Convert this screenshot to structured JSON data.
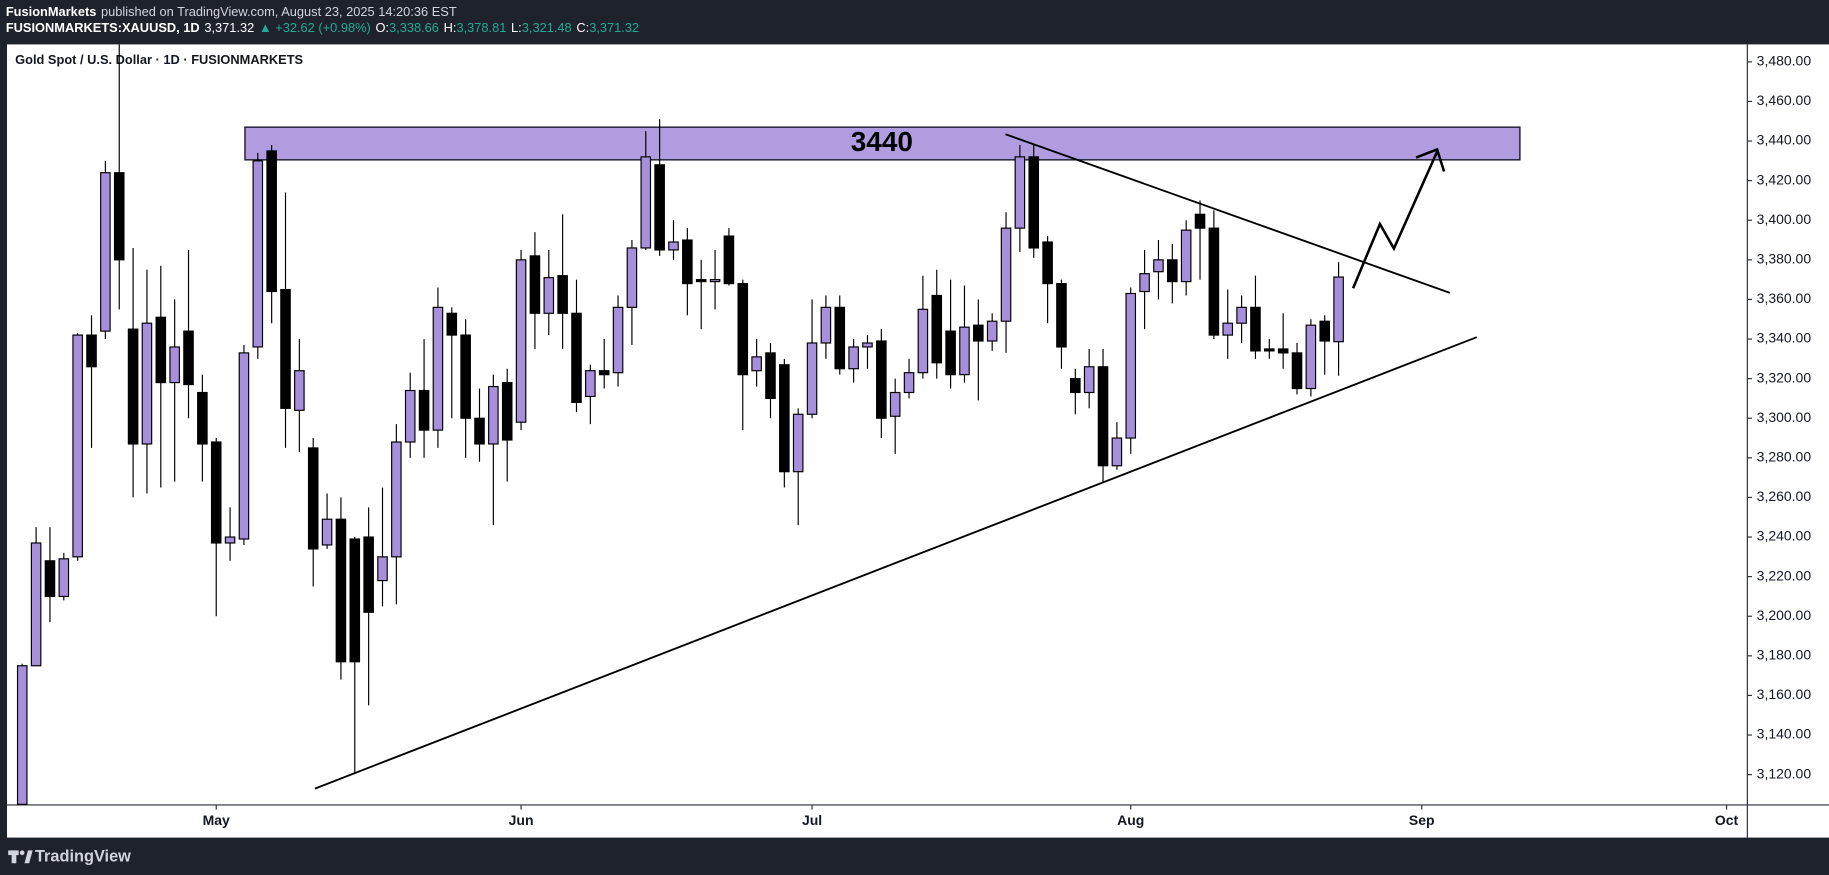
{
  "header": {
    "publisher": "FusionMarkets",
    "published": "published on TradingView.com, August 23, 2025 14:20:36 EST",
    "symbol": "FUSIONMARKETS:XAUUSD, 1D",
    "last": "3,371.32",
    "change": "▲ +32.62 (+0.98%)",
    "ohlc": [
      {
        "label": "O:",
        "value": "3,338.66"
      },
      {
        "label": "H:",
        "value": "3,378.81"
      },
      {
        "label": "L:",
        "value": "3,321.48"
      },
      {
        "label": "C:",
        "value": "3,371.32"
      }
    ],
    "accent_color": "#22ab94"
  },
  "chart_data": {
    "type": "candlestick",
    "title": "Gold Spot / U.S. Dollar · 1D · FUSIONMARKETS",
    "up_color": "#a690dc",
    "down_color": "#000000",
    "series": [
      {
        "open": [
          3105,
          3175,
          3228,
          3210,
          3230,
          3342,
          3344,
          3424,
          3345,
          3287,
          3351,
          3318,
          3344,
          3313,
          3288,
          3237,
          3239,
          3336,
          3435,
          3365,
          3304,
          3285,
          3236,
          3249,
          3239,
          3240,
          3218,
          3230,
          3288,
          3314,
          3294,
          3353,
          3342,
          3300,
          3287,
          3318,
          3298,
          3382,
          3353,
          3372,
          3353,
          3311,
          3324,
          3323,
          3356,
          3386,
          3428,
          3385,
          3390,
          3370,
          3369,
          3392,
          3368,
          3324,
          3333,
          3327,
          3273,
          3302,
          3338,
          3356,
          3325,
          3336,
          3339,
          3301,
          3313,
          3323,
          3362,
          3344,
          3322,
          3347,
          3339,
          3349,
          3396,
          3432,
          3389,
          3368,
          3320,
          3313,
          3326,
          3276,
          3290,
          3364,
          3374,
          3380,
          3369,
          3403,
          3396,
          3342,
          3348,
          3356,
          3335,
          3335,
          3333,
          3315,
          3349,
          3338.66
        ],
        "high": [
          3176,
          3245,
          3245,
          3232,
          3343,
          3352,
          3430,
          3490,
          3386,
          3375,
          3377,
          3360,
          3385,
          3322,
          3290,
          3255,
          3337,
          3434,
          3438,
          3414,
          3340,
          3290,
          3262,
          3260,
          3240,
          3255,
          3265,
          3297,
          3323,
          3340,
          3366,
          3356,
          3350,
          3315,
          3322,
          3325,
          3385,
          3394,
          3385,
          3403,
          3370,
          3327,
          3340,
          3362,
          3390,
          3445,
          3451,
          3400,
          3396,
          3380,
          3385,
          3396,
          3370,
          3340,
          3338,
          3330,
          3305,
          3360,
          3362,
          3362,
          3340,
          3342,
          3345,
          3320,
          3330,
          3372,
          3375,
          3370,
          3367,
          3360,
          3353,
          3404,
          3438,
          3438,
          3392,
          3370,
          3325,
          3335,
          3335,
          3298,
          3366,
          3385,
          3390,
          3388,
          3400,
          3410,
          3405,
          3365,
          3362,
          3372,
          3340,
          3353,
          3338,
          3350,
          3352,
          3378.81
        ],
        "low": [
          3100,
          3175,
          3197,
          3208,
          3228,
          3285,
          3340,
          3355,
          3260,
          3262,
          3265,
          3268,
          3300,
          3268,
          3200,
          3228,
          3236,
          3330,
          3348,
          3285,
          3283,
          3215,
          3234,
          3168,
          3121,
          3155,
          3205,
          3206,
          3280,
          3280,
          3285,
          3300,
          3280,
          3278,
          3246,
          3268,
          3294,
          3335,
          3342,
          3335,
          3303,
          3297,
          3315,
          3316,
          3337,
          3385,
          3382,
          3380,
          3352,
          3345,
          3355,
          3367,
          3294,
          3316,
          3300,
          3265,
          3246,
          3300,
          3330,
          3322,
          3318,
          3325,
          3290,
          3282,
          3310,
          3320,
          3320,
          3315,
          3318,
          3309,
          3334,
          3333,
          3384,
          3381,
          3348,
          3325,
          3302,
          3305,
          3268,
          3274,
          3282,
          3345,
          3360,
          3358,
          3362,
          3370,
          3340,
          3330,
          3338,
          3330,
          3330,
          3325,
          3312,
          3311,
          3322,
          3321.48
        ],
        "close": [
          3175,
          3237,
          3210,
          3229,
          3342,
          3326,
          3424,
          3380,
          3287,
          3348,
          3318,
          3336,
          3317,
          3287,
          3237,
          3240,
          3333,
          3430,
          3364,
          3305,
          3324,
          3234,
          3249,
          3177,
          3177,
          3202,
          3230,
          3288,
          3314,
          3294,
          3356,
          3342,
          3300,
          3287,
          3316,
          3289,
          3380,
          3353,
          3371,
          3353,
          3308,
          3324,
          3322,
          3356,
          3386,
          3432,
          3385,
          3389,
          3368,
          3369,
          3370,
          3368,
          3322,
          3331,
          3310,
          3273,
          3302,
          3338,
          3356,
          3325,
          3336,
          3338,
          3300,
          3313,
          3323,
          3355,
          3328,
          3322,
          3346,
          3339,
          3349,
          3396,
          3432,
          3386,
          3368,
          3336,
          3313,
          3326,
          3276,
          3290,
          3363,
          3373,
          3380,
          3369,
          3395,
          3396,
          3342,
          3348,
          3356,
          3334,
          3334,
          3333,
          3315,
          3347,
          3339,
          3371.32
        ]
      }
    ],
    "xlim": [
      -1.1,
      124.5
    ],
    "xticks": [
      {
        "value": 14,
        "label": "May"
      },
      {
        "value": 36,
        "label": "Jun"
      },
      {
        "value": 57,
        "label": "Jul"
      },
      {
        "value": 80,
        "label": "Aug"
      },
      {
        "value": 101,
        "label": "Sep"
      },
      {
        "value": 123,
        "label": "Oct"
      }
    ],
    "ylim": [
      3104.7,
      3488.8
    ],
    "yticks": [
      {
        "value": 3120,
        "label": "3,120.00"
      },
      {
        "value": 3140,
        "label": "3,140.00"
      },
      {
        "value": 3160,
        "label": "3,160.00"
      },
      {
        "value": 3180,
        "label": "3,180.00"
      },
      {
        "value": 3200,
        "label": "3,200.00"
      },
      {
        "value": 3220,
        "label": "3,220.00"
      },
      {
        "value": 3240,
        "label": "3,240.00"
      },
      {
        "value": 3260,
        "label": "3,260.00"
      },
      {
        "value": 3280,
        "label": "3,280.00"
      },
      {
        "value": 3300,
        "label": "3,300.00"
      },
      {
        "value": 3320,
        "label": "3,320.00"
      },
      {
        "value": 3340,
        "label": "3,340.00"
      },
      {
        "value": 3360,
        "label": "3,360.00"
      },
      {
        "value": 3380,
        "label": "3,380.00"
      },
      {
        "value": 3400,
        "label": "3,400.00"
      },
      {
        "value": 3420,
        "label": "3,420.00"
      },
      {
        "value": 3440,
        "label": "3,440.00"
      },
      {
        "value": 3460,
        "label": "3,460.00"
      },
      {
        "value": 3480,
        "label": "3,480.00"
      }
    ],
    "grid": false,
    "zone": {
      "label": "3440",
      "range": [
        3430.5,
        3447
      ],
      "color": "#b19ce0"
    }
  },
  "footer": {
    "brand": "TradingView"
  }
}
